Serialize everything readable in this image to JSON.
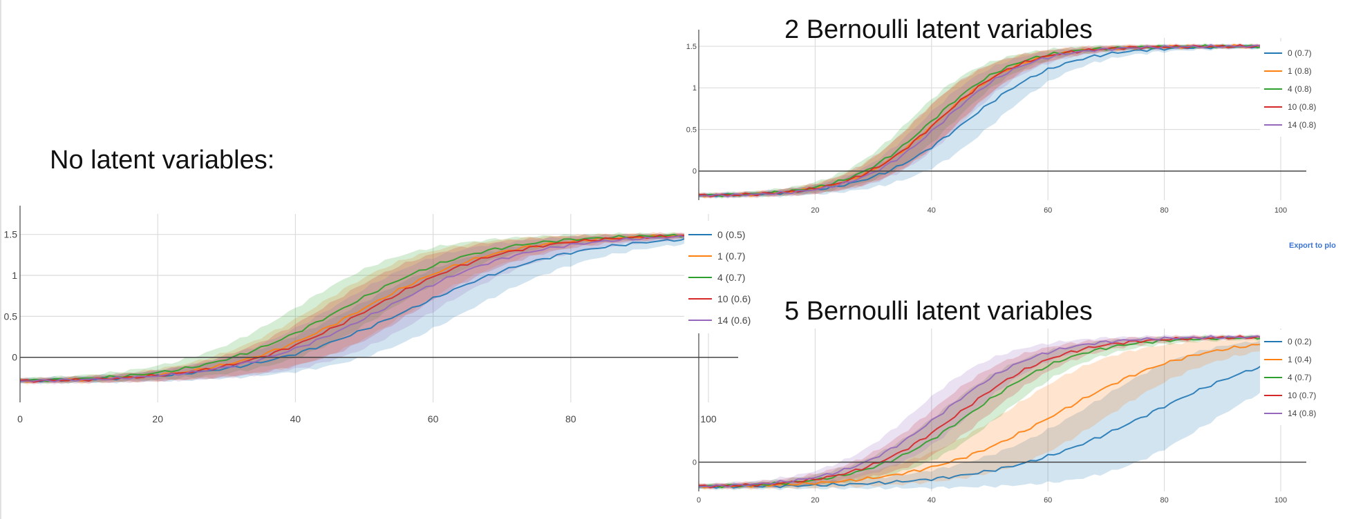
{
  "labels": {
    "chart1_title": "No latent variables:",
    "chart2_title": "2 Bernoulli latent variables",
    "chart3_title": "5 Bernoulli latent variables",
    "export_link": "Export to plo"
  },
  "colors": {
    "series": [
      "#1f77b4",
      "#ff7f0e",
      "#2ca02c",
      "#d62728",
      "#9467bd"
    ]
  },
  "chart_data": [
    {
      "type": "line",
      "title": "No latent variables:",
      "xlabel": "",
      "ylabel": "",
      "xlim": [
        0,
        100
      ],
      "ylim": [
        -0.55,
        1.75
      ],
      "x_ticks": [
        0,
        20,
        40,
        60,
        80,
        100
      ],
      "y_ticks": [
        0,
        0.5,
        1,
        1.5
      ],
      "y_tick_labels": [
        "0",
        "0.5",
        "1",
        "1.5"
      ],
      "grid": true,
      "shaded_bands": true,
      "legend_position": "right",
      "series": [
        {
          "name": "0 (0.5)",
          "mid": 57,
          "k": 0.085,
          "band": 0.32
        },
        {
          "name": "1 (0.7)",
          "mid": 50,
          "k": 0.1,
          "band": 0.32
        },
        {
          "name": "4 (0.7)",
          "mid": 47,
          "k": 0.1,
          "band": 0.3
        },
        {
          "name": "10 (0.6)",
          "mid": 51,
          "k": 0.1,
          "band": 0.3
        },
        {
          "name": "14 (0.6)",
          "mid": 53,
          "k": 0.095,
          "band": 0.32
        }
      ]
    },
    {
      "type": "line",
      "title": "2 Bernoulli latent variables",
      "xlabel": "",
      "ylabel": "",
      "xlim": [
        0,
        100
      ],
      "ylim": [
        -0.35,
        1.6
      ],
      "x_ticks": [
        20,
        40,
        60,
        80,
        100
      ],
      "y_ticks": [
        0,
        0.5,
        1,
        1.5
      ],
      "y_tick_labels": [
        "0",
        "0.5",
        "1",
        "1.5"
      ],
      "grid": true,
      "shaded_bands": true,
      "legend_position": "top-right",
      "series": [
        {
          "name": "0 (0.7)",
          "mid": 46,
          "k": 0.12,
          "band": 0.25,
          "ymax": 1.8
        },
        {
          "name": "1 (0.8)",
          "mid": 41,
          "k": 0.14,
          "band": 0.22,
          "ymax": 1.8
        },
        {
          "name": "4 (0.8)",
          "mid": 40,
          "k": 0.14,
          "band": 0.22,
          "ymax": 1.8
        },
        {
          "name": "10 (0.8)",
          "mid": 41,
          "k": 0.14,
          "band": 0.22,
          "ymax": 1.8
        },
        {
          "name": "14 (0.8)",
          "mid": 42,
          "k": 0.14,
          "band": 0.2,
          "ymax": 1.7
        }
      ]
    },
    {
      "type": "line",
      "title": "5 Bernoulli latent variables",
      "xlabel": "",
      "ylabel": "",
      "xlim": [
        0,
        100
      ],
      "ylim": [
        -0.35,
        1.6
      ],
      "x_ticks": [
        0,
        20,
        40,
        60,
        80,
        100
      ],
      "y_ticks": [
        0
      ],
      "y_tick_labels": [
        "0"
      ],
      "grid": true,
      "shaded_bands": true,
      "legend_position": "top-right",
      "series": [
        {
          "name": "0 (0.2)",
          "mid": 78,
          "k": 0.075,
          "band": 0.45,
          "ymax": 1.8
        },
        {
          "name": "1 (0.4)",
          "mid": 62,
          "k": 0.085,
          "band": 0.35,
          "ymax": 1.8
        },
        {
          "name": "4 (0.7)",
          "mid": 47,
          "k": 0.11,
          "band": 0.25,
          "ymax": 1.8
        },
        {
          "name": "10 (0.7)",
          "mid": 45,
          "k": 0.115,
          "band": 0.25,
          "ymax": 1.8
        },
        {
          "name": "14 (0.8)",
          "mid": 42,
          "k": 0.12,
          "band": 0.25,
          "ymax": 1.8
        }
      ]
    }
  ]
}
